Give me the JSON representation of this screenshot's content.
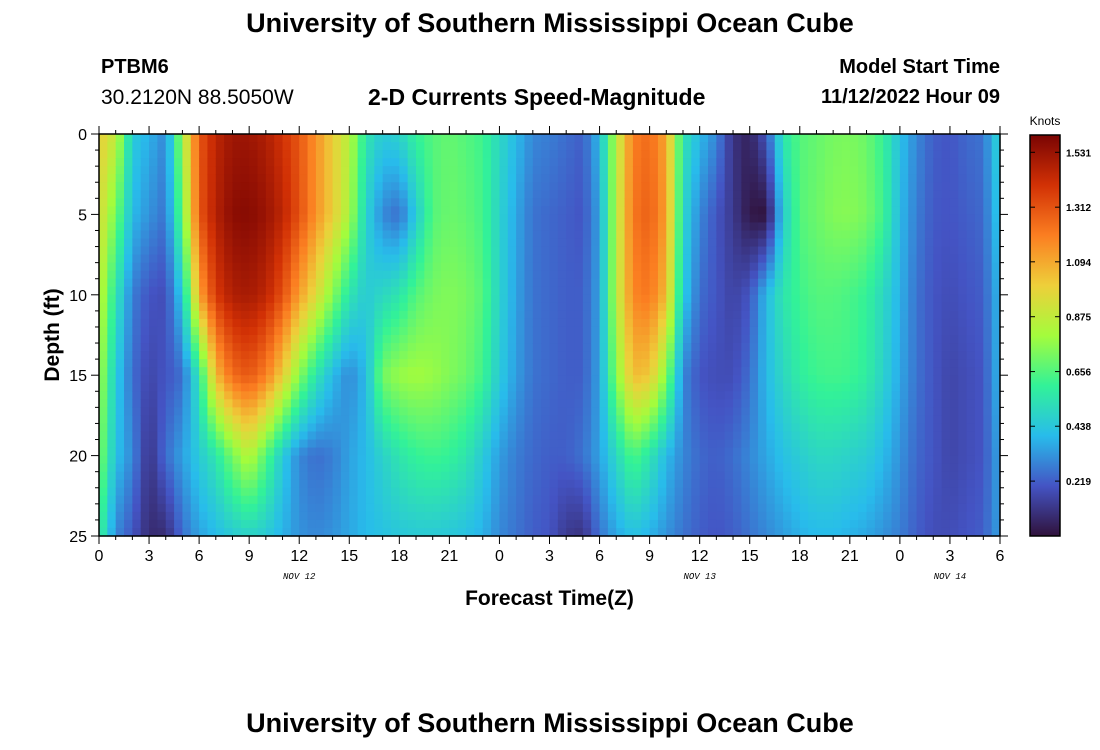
{
  "header": {
    "title": "University of Southern Mississippi Ocean Cube",
    "station_id": "PTBM6",
    "station_coords": "30.2120N  88.5050W",
    "chart_title": "2-D Currents Speed-Magnitude",
    "model_start_label": "Model Start Time",
    "model_start_time": "11/12/2022 Hour 09"
  },
  "footer": {
    "title": "University of Southern Mississippi Ocean Cube"
  },
  "chart_data": {
    "type": "heatmap",
    "title": "2-D Currents Speed-Magnitude",
    "xlabel": "Forecast Time(Z)",
    "ylabel": "Depth (ft)",
    "x_range_hours": [
      0,
      54
    ],
    "x_tick_hours": [
      0,
      3,
      6,
      9,
      12,
      15,
      18,
      21,
      24,
      27,
      30,
      33,
      36,
      39,
      42,
      45,
      48,
      51,
      54
    ],
    "x_tick_labels": [
      "0",
      "3",
      "6",
      "9",
      "12",
      "15",
      "18",
      "21",
      "0",
      "3",
      "6",
      "9",
      "12",
      "15",
      "18",
      "21",
      "0",
      "3",
      "6"
    ],
    "date_labels": [
      {
        "text": "NOV 12",
        "hour": 12
      },
      {
        "text": "NOV 13",
        "hour": 36
      },
      {
        "text": "NOV 14",
        "hour": 51
      }
    ],
    "y_range_ft": [
      0,
      25
    ],
    "y_ticks": [
      0,
      5,
      10,
      15,
      20,
      25
    ],
    "y_inverted": true,
    "colorbar": {
      "label": "Knots",
      "min": 0,
      "max": 1.6,
      "ticks": [
        "1.531",
        "1.312",
        "1.094",
        "0.875",
        "0.656",
        "0.438",
        "0.219"
      ],
      "colormap": [
        "#30123b",
        "#4454c4",
        "#28bceb",
        "#32f298",
        "#a4fc3c",
        "#eecf3a",
        "#fb7e21",
        "#d23105",
        "#7a0403"
      ]
    },
    "depths_ft": [
      0,
      5,
      10,
      15,
      20,
      25
    ],
    "grid_hours": [
      0,
      1,
      2,
      3,
      4,
      5,
      6,
      7,
      8,
      9,
      10,
      11,
      12,
      13,
      14,
      15,
      16,
      17,
      18,
      19,
      20,
      21,
      22,
      23,
      24,
      25,
      26,
      27,
      28,
      29,
      30,
      31,
      32,
      33,
      34,
      35,
      36,
      37,
      38,
      39,
      40,
      41,
      42,
      43,
      44,
      45,
      46,
      47,
      48,
      49,
      50,
      51,
      52,
      53,
      54
    ],
    "speed_knots": [
      [
        1.0,
        0.88,
        0.45,
        0.38,
        0.3,
        0.8,
        1.3,
        1.45,
        1.52,
        1.52,
        1.48,
        1.4,
        1.3,
        1.15,
        1.0,
        0.85,
        0.55,
        0.45,
        0.48,
        0.6,
        0.66,
        0.69,
        0.66,
        0.62,
        0.5,
        0.4,
        0.3,
        0.28,
        0.25,
        0.22,
        0.4,
        0.85,
        1.2,
        1.25,
        1.1,
        0.55,
        0.4,
        0.3,
        0.1,
        0.05,
        0.2,
        0.55,
        0.66,
        0.69,
        0.72,
        0.73,
        0.7,
        0.6,
        0.42,
        0.3,
        0.22,
        0.2,
        0.24,
        0.26,
        0.5
      ],
      [
        0.95,
        0.72,
        0.4,
        0.32,
        0.26,
        0.7,
        1.3,
        1.47,
        1.56,
        1.57,
        1.53,
        1.45,
        1.32,
        1.15,
        1.0,
        0.82,
        0.48,
        0.3,
        0.25,
        0.45,
        0.66,
        0.7,
        0.68,
        0.63,
        0.48,
        0.36,
        0.26,
        0.24,
        0.22,
        0.2,
        0.35,
        0.85,
        1.22,
        1.28,
        1.12,
        0.5,
        0.3,
        0.2,
        0.12,
        0.02,
        0.0,
        0.45,
        0.66,
        0.7,
        0.74,
        0.75,
        0.72,
        0.62,
        0.4,
        0.28,
        0.21,
        0.2,
        0.22,
        0.24,
        0.45
      ],
      [
        0.88,
        0.55,
        0.28,
        0.2,
        0.18,
        0.45,
        1.1,
        1.38,
        1.48,
        1.5,
        1.45,
        1.32,
        1.12,
        0.95,
        0.75,
        0.55,
        0.45,
        0.5,
        0.55,
        0.66,
        0.72,
        0.74,
        0.72,
        0.66,
        0.48,
        0.35,
        0.26,
        0.24,
        0.22,
        0.22,
        0.35,
        0.85,
        1.18,
        1.22,
        1.05,
        0.45,
        0.25,
        0.2,
        0.15,
        0.2,
        0.4,
        0.55,
        0.62,
        0.66,
        0.66,
        0.64,
        0.6,
        0.5,
        0.38,
        0.26,
        0.2,
        0.18,
        0.2,
        0.22,
        0.4
      ],
      [
        0.82,
        0.45,
        0.25,
        0.16,
        0.2,
        0.25,
        0.55,
        1.05,
        1.25,
        1.3,
        1.2,
        1.0,
        0.75,
        0.55,
        0.4,
        0.3,
        0.4,
        0.72,
        0.78,
        0.8,
        0.78,
        0.74,
        0.7,
        0.62,
        0.45,
        0.34,
        0.26,
        0.24,
        0.22,
        0.22,
        0.35,
        0.75,
        1.05,
        1.02,
        0.75,
        0.3,
        0.2,
        0.18,
        0.18,
        0.25,
        0.4,
        0.5,
        0.58,
        0.62,
        0.63,
        0.62,
        0.58,
        0.48,
        0.36,
        0.26,
        0.2,
        0.16,
        0.18,
        0.2,
        0.4
      ],
      [
        0.75,
        0.42,
        0.3,
        0.1,
        0.25,
        0.35,
        0.45,
        0.55,
        0.72,
        0.85,
        0.66,
        0.45,
        0.3,
        0.25,
        0.28,
        0.35,
        0.4,
        0.48,
        0.55,
        0.6,
        0.62,
        0.6,
        0.55,
        0.45,
        0.34,
        0.28,
        0.24,
        0.22,
        0.22,
        0.26,
        0.35,
        0.5,
        0.65,
        0.55,
        0.4,
        0.3,
        0.24,
        0.22,
        0.25,
        0.3,
        0.36,
        0.42,
        0.46,
        0.5,
        0.5,
        0.48,
        0.46,
        0.4,
        0.32,
        0.24,
        0.2,
        0.16,
        0.18,
        0.2,
        0.36
      ],
      [
        0.62,
        0.3,
        0.2,
        0.08,
        0.08,
        0.25,
        0.35,
        0.4,
        0.45,
        0.48,
        0.45,
        0.38,
        0.32,
        0.3,
        0.32,
        0.36,
        0.4,
        0.42,
        0.44,
        0.45,
        0.45,
        0.44,
        0.42,
        0.38,
        0.3,
        0.26,
        0.22,
        0.2,
        0.12,
        0.1,
        0.26,
        0.36,
        0.42,
        0.38,
        0.32,
        0.26,
        0.22,
        0.2,
        0.22,
        0.26,
        0.3,
        0.34,
        0.38,
        0.4,
        0.4,
        0.38,
        0.36,
        0.32,
        0.28,
        0.22,
        0.18,
        0.18,
        0.2,
        0.22,
        0.35
      ]
    ]
  }
}
